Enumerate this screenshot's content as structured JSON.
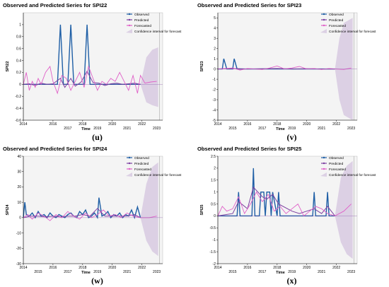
{
  "colors": {
    "observed": "#1f5fa6",
    "predicted": "#7b3fa0",
    "forecasted": "#e060c8",
    "confidence": "#dcd0e4",
    "plot_background": "#f4f4f4",
    "axis": "#000000"
  },
  "chart_data": [
    {
      "type": "line",
      "title": "Observed and Predicted Series for SPI22",
      "panel_label": "(u)",
      "xlabel": "Time",
      "ylabel": "SPI22",
      "x_ticks_top": [
        "2014",
        "2016",
        "2018",
        "2020",
        "2022"
      ],
      "x_ticks_bottom": [
        "2017",
        "2019",
        "2021",
        "2023"
      ],
      "xlim": [
        2014,
        2023.4
      ],
      "ylim": [
        -0.6,
        1.2
      ],
      "y_ticks": [
        -0.6,
        -0.4,
        -0.2,
        0,
        0.2,
        0.4,
        0.6,
        0.8,
        1
      ],
      "grid": false,
      "legend_position": "top-right",
      "legend": [
        "Observed",
        "Predicted",
        "Forecasted",
        "Confidence interval for forecast"
      ],
      "series": [
        {
          "name": "Observed",
          "x": [
            2014,
            2016.3,
            2016.5,
            2016.7,
            2017,
            2017.2,
            2017.4,
            2018.1,
            2018.3,
            2018.5,
            2021.9
          ],
          "y": [
            0,
            0,
            1,
            0,
            0,
            1,
            0,
            0,
            1,
            0,
            0
          ]
        },
        {
          "name": "Predicted",
          "x": [
            2014,
            2014.4,
            2014.8,
            2015.2,
            2015.6,
            2016,
            2016.5,
            2016.8,
            2017.2,
            2017.5,
            2017.9,
            2018.3,
            2018.7,
            2019.1,
            2019.5,
            2019.9,
            2020.3,
            2020.7,
            2021.1,
            2021.5,
            2021.9
          ],
          "y": [
            0,
            0.01,
            -0.02,
            0.02,
            0,
            0.01,
            0.1,
            -0.05,
            0.1,
            -0.03,
            0.04,
            0.22,
            0.03,
            0.02,
            -0.02,
            0.01,
            0.02,
            0,
            0.01,
            0.02,
            0
          ]
        },
        {
          "name": "Forecasted",
          "x": [
            2014,
            2014.2,
            2014.4,
            2014.6,
            2014.8,
            2015,
            2015.2,
            2015.5,
            2015.8,
            2016,
            2016.3,
            2016.6,
            2016.9,
            2017.2,
            2017.5,
            2017.8,
            2018.1,
            2018.4,
            2018.7,
            2019,
            2019.3,
            2019.6,
            2019.9,
            2020.2,
            2020.5,
            2020.8,
            2021.1,
            2021.4,
            2021.7,
            2021.9,
            2022.2,
            2022.6,
            2023
          ],
          "y": [
            0,
            0.2,
            -0.1,
            0.05,
            -0.05,
            0.1,
            0,
            0.2,
            0.3,
            0.05,
            -0.15,
            0.15,
            0.1,
            -0.1,
            0.05,
            0.2,
            -0.05,
            0.3,
            0.1,
            -0.1,
            0.05,
            0,
            0.1,
            0.05,
            0.2,
            0.05,
            -0.1,
            0.15,
            -0.15,
            0.15,
            0.02,
            0.04,
            0.05
          ]
        },
        {
          "name": "Confidence interval for forecast",
          "x": [
            2021.9,
            2022.3,
            2022.7,
            2023.1
          ],
          "lower": [
            0,
            -0.3,
            -0.35,
            -0.38
          ],
          "upper": [
            0,
            0.45,
            0.58,
            0.62
          ]
        }
      ]
    },
    {
      "type": "line",
      "title": "Observed and Predicted Series for SPI23",
      "panel_label": "(v)",
      "xlabel": "Time",
      "ylabel": "SPI23",
      "x_ticks_top": [
        "2014",
        "2016",
        "2018",
        "2020",
        "2022"
      ],
      "x_ticks_bottom": [
        "2015",
        "2017",
        "2019",
        "2021",
        "2023"
      ],
      "xlim": [
        2014,
        2023.4
      ],
      "ylim": [
        -5,
        5.5
      ],
      "y_ticks": [
        -5,
        -4,
        -3,
        -2,
        -1,
        0,
        1,
        2,
        3,
        4,
        5
      ],
      "grid": false,
      "legend_position": "top-right",
      "legend": [
        "Observed",
        "Predicted",
        "Forecasted",
        "Confidence interval for forecast"
      ],
      "series": [
        {
          "name": "Observed",
          "x": [
            2014,
            2014.3,
            2014.4,
            2014.6,
            2015,
            2015.1,
            2015.3,
            2021.9
          ],
          "y": [
            0,
            0,
            1,
            0,
            0,
            1,
            0,
            0
          ]
        },
        {
          "name": "Predicted",
          "x": [
            2014,
            2015,
            2016,
            2017,
            2018,
            2019,
            2020,
            2021,
            2021.9
          ],
          "y": [
            0,
            0.05,
            0,
            0.02,
            0.05,
            0,
            0.02,
            0,
            0
          ]
        },
        {
          "name": "Forecasted",
          "x": [
            2014,
            2015,
            2015.5,
            2016,
            2016.5,
            2017,
            2017.5,
            2018,
            2018.5,
            2019,
            2019.5,
            2020,
            2020.5,
            2021,
            2021.5,
            2021.9,
            2022.5,
            2023
          ],
          "y": [
            0,
            0.1,
            -0.1,
            0.05,
            0,
            -0.05,
            0.1,
            0.3,
            0,
            0.1,
            0.25,
            0,
            0.05,
            -0.05,
            0.05,
            0,
            -0.05,
            0.1
          ]
        },
        {
          "name": "Confidence interval for forecast",
          "x": [
            2021.9,
            2022.2,
            2022.5,
            2023.1
          ],
          "lower": [
            0,
            -3,
            -4.5,
            -5
          ],
          "upper": [
            0,
            3,
            4.5,
            5
          ]
        }
      ]
    },
    {
      "type": "line",
      "title": "Observed and Predicted Series for SPI24",
      "panel_label": "(w)",
      "xlabel": "Time",
      "ylabel": "SPI24",
      "x_ticks_top": [
        "2014",
        "2016",
        "2018",
        "2020",
        "2022"
      ],
      "x_ticks_bottom": [
        "2015",
        "2017",
        "2019",
        "2021",
        "2023"
      ],
      "xlim": [
        2014,
        2023.4
      ],
      "ylim": [
        -30,
        40
      ],
      "y_ticks": [
        -30,
        -20,
        -10,
        0,
        10,
        20,
        30,
        40
      ],
      "grid": false,
      "legend_position": "top-right",
      "legend": [
        "Observed",
        "Predicted",
        "Forecasted",
        "Confidence interval for forecast"
      ],
      "series": [
        {
          "name": "Observed",
          "x": [
            2014,
            2014.1,
            2014.2,
            2014.4,
            2014.6,
            2014.8,
            2015,
            2015.2,
            2015.4,
            2015.6,
            2015.8,
            2016,
            2016.2,
            2016.4,
            2016.6,
            2016.8,
            2017,
            2017.2,
            2017.4,
            2017.6,
            2017.8,
            2018,
            2018.2,
            2018.4,
            2018.6,
            2018.8,
            2019,
            2019.1,
            2019.3,
            2019.5,
            2019.7,
            2019.9,
            2020.1,
            2020.3,
            2020.5,
            2020.7,
            2020.9,
            2021.1,
            2021.3,
            2021.5,
            2021.7,
            2021.9
          ],
          "y": [
            0,
            10,
            2,
            1,
            3,
            0,
            4,
            1,
            2,
            0,
            3,
            1,
            0,
            2,
            1,
            0,
            2,
            3,
            1,
            0,
            4,
            2,
            5,
            0,
            1,
            3,
            0,
            13,
            1,
            2,
            4,
            0,
            2,
            1,
            3,
            0,
            2,
            1,
            5,
            0,
            7,
            0
          ]
        },
        {
          "name": "Predicted",
          "x": [
            2014,
            2014.5,
            2015,
            2015.5,
            2016,
            2016.5,
            2017,
            2017.5,
            2018,
            2018.5,
            2019,
            2019.5,
            2020,
            2020.5,
            2021,
            2021.5,
            2021.9
          ],
          "y": [
            0,
            1,
            1,
            0.5,
            1,
            0.5,
            1,
            1,
            2,
            1,
            6,
            1,
            1,
            1,
            1,
            2,
            0
          ]
        },
        {
          "name": "Forecasted",
          "x": [
            2014,
            2014.3,
            2014.6,
            2015,
            2015.4,
            2015.8,
            2016.2,
            2016.6,
            2017,
            2017.4,
            2017.8,
            2018.2,
            2018.6,
            2019,
            2019.4,
            2019.8,
            2020.2,
            2020.6,
            2021,
            2021.4,
            2021.9,
            2022.5,
            2023
          ],
          "y": [
            0,
            2,
            -1,
            3,
            1,
            -2,
            2,
            0,
            4,
            1,
            -1,
            3,
            0,
            2,
            5,
            1,
            2,
            0,
            3,
            1,
            0,
            0,
            1
          ]
        },
        {
          "name": "Confidence interval for forecast",
          "x": [
            2021.9,
            2022.3,
            2022.7,
            2023.1
          ],
          "lower": [
            0,
            -15,
            -22,
            -25
          ],
          "upper": [
            0,
            22,
            33,
            36
          ]
        }
      ]
    },
    {
      "type": "line",
      "title": "Observed and Predicted Series for SPI25",
      "panel_label": "(x)",
      "xlabel": "Time",
      "ylabel": "SPI25",
      "x_ticks_top": [
        "2014",
        "2016",
        "2018",
        "2020",
        "2022"
      ],
      "x_ticks_bottom": [
        "2015",
        "2017",
        "2019",
        "2021",
        "2023"
      ],
      "xlim": [
        2014,
        2023.4
      ],
      "ylim": [
        -2,
        2.5
      ],
      "y_ticks": [
        -2,
        -1.5,
        -1,
        -0.5,
        0,
        0.5,
        1,
        1.5,
        2,
        2.5
      ],
      "grid": false,
      "legend_position": "top-right",
      "legend": [
        "Observed",
        "Predicted",
        "Forecasted",
        "Confidence interval for forecast"
      ],
      "series": [
        {
          "name": "Observed",
          "x": [
            2014,
            2015.3,
            2015.4,
            2015.5,
            2016.3,
            2016.4,
            2016.5,
            2016.8,
            2016.9,
            2017.1,
            2017.2,
            2017.3,
            2017.5,
            2017.6,
            2017.7,
            2018,
            2018.1,
            2018.2,
            2020.4,
            2020.5,
            2020.6,
            2021.3,
            2021.4,
            2021.5,
            2021.9
          ],
          "y": [
            0,
            0,
            1,
            0,
            0,
            2,
            0,
            0,
            1,
            1,
            0,
            1,
            1,
            0,
            1,
            0,
            1,
            0,
            0,
            1,
            0,
            0,
            1,
            0,
            0
          ]
        },
        {
          "name": "Predicted",
          "x": [
            2014,
            2015,
            2015.4,
            2016,
            2016.4,
            2017,
            2017.3,
            2017.7,
            2018.1,
            2019,
            2019.5,
            2020,
            2020.5,
            2021,
            2021.4,
            2021.9
          ],
          "y": [
            0,
            0.1,
            0.6,
            0.3,
            1.2,
            0.8,
            0.7,
            0.9,
            0.5,
            0.2,
            0.1,
            0.2,
            0.3,
            0.1,
            0.4,
            0
          ]
        },
        {
          "name": "Forecasted",
          "x": [
            2014,
            2014.3,
            2014.6,
            2015,
            2015.4,
            2015.8,
            2016.2,
            2016.6,
            2017,
            2017.4,
            2017.8,
            2018.2,
            2018.6,
            2019,
            2019.4,
            2019.8,
            2020.2,
            2020.6,
            2021,
            2021.4,
            2021.9,
            2022.5,
            2023
          ],
          "y": [
            0,
            0.4,
            0.2,
            0.3,
            0.8,
            0.1,
            0.5,
            1,
            0.6,
            0.9,
            0.2,
            0.4,
            0.1,
            0.3,
            0.5,
            0,
            0.2,
            0.4,
            0.3,
            0.1,
            0,
            0.2,
            0.5
          ]
        },
        {
          "name": "Confidence interval for forecast",
          "x": [
            2021.9,
            2022.3,
            2022.7,
            2023.1
          ],
          "lower": [
            0,
            -1.1,
            -1.6,
            -1.8
          ],
          "upper": [
            0,
            1.6,
            2.1,
            2.3
          ]
        }
      ]
    }
  ]
}
